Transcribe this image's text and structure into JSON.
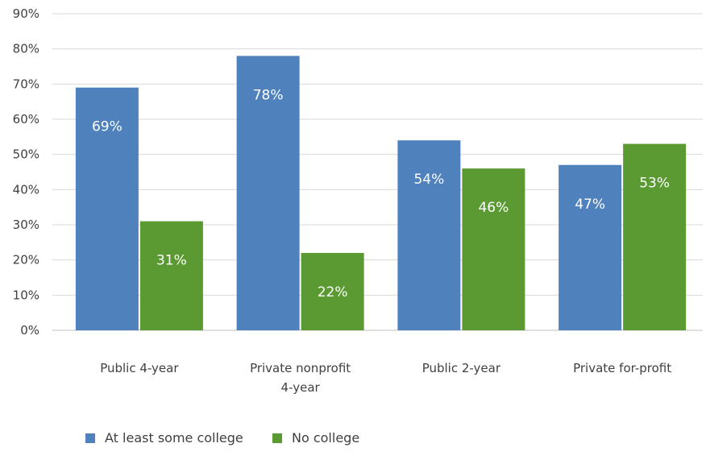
{
  "chart_data": {
    "type": "bar",
    "categories": [
      [
        "Public 4-year"
      ],
      [
        "Private nonprofit",
        "4-year"
      ],
      [
        "Public 2-year"
      ],
      [
        "Private for-profit"
      ]
    ],
    "series": [
      {
        "name": "At least some college",
        "values": [
          69,
          78,
          54,
          47
        ],
        "labels": [
          "69%",
          "78%",
          "54%",
          "47%"
        ],
        "color": "#4f81bd"
      },
      {
        "name": "No college",
        "values": [
          31,
          22,
          46,
          53
        ],
        "labels": [
          "31%",
          "22%",
          "46%",
          "53%"
        ],
        "color": "#5b9a32"
      }
    ],
    "ylim": [
      0,
      90
    ],
    "yticks": [
      "0%",
      "10%",
      "20%",
      "30%",
      "40%",
      "50%",
      "60%",
      "70%",
      "80%",
      "90%"
    ],
    "grid": true,
    "legend": "bottom-left"
  }
}
